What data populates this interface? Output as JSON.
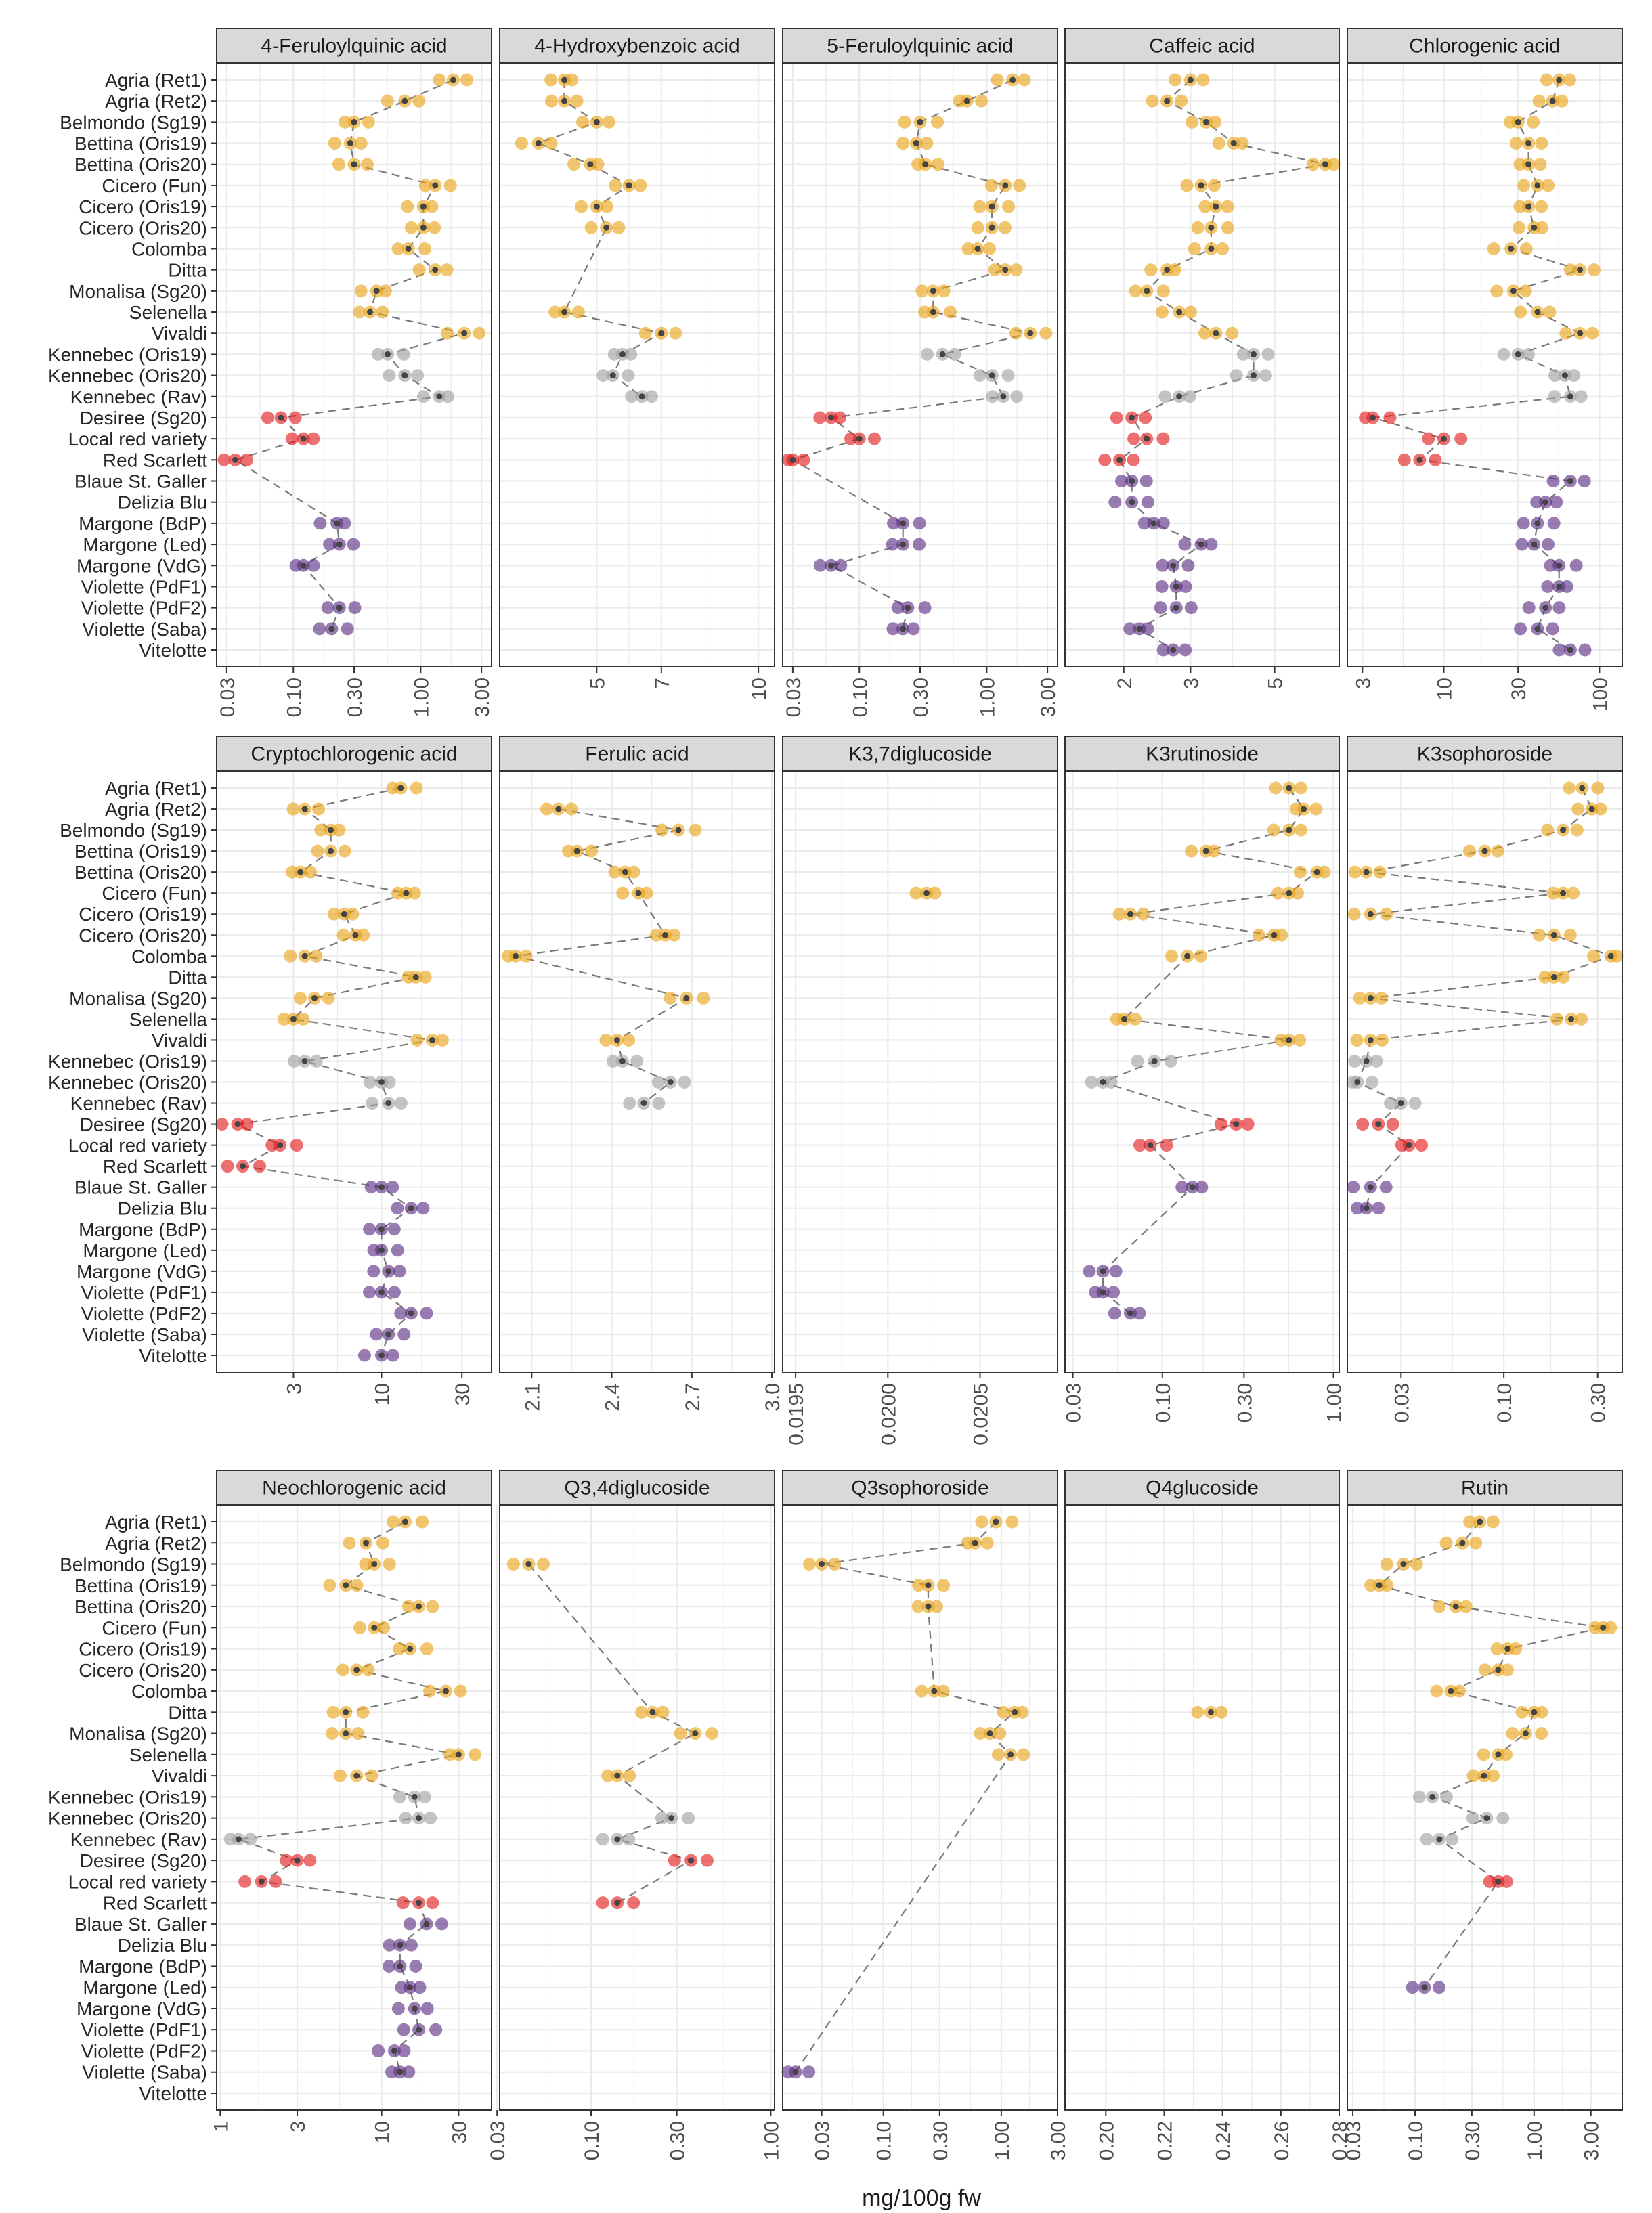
{
  "chart_data": {
    "type": "scatter",
    "xlabel": "mg/100g fw",
    "colors": {
      "yellow": "#E8A317",
      "grey": "#A0A0A0",
      "red": "#E41A1C",
      "purple": "#5B2C83",
      "mean": "#444444",
      "strip": "#D9D9D9",
      "grid": "#EBEBEB"
    },
    "varieties": [
      "Agria (Ret1)",
      "Agria (Ret2)",
      "Belmondo (Sg19)",
      "Bettina (Oris19)",
      "Bettina (Oris20)",
      "Cicero (Fun)",
      "Cicero (Oris19)",
      "Cicero (Oris20)",
      "Colomba",
      "Ditta",
      "Monalisa (Sg20)",
      "Selenella",
      "Vivaldi",
      "Kennebec (Oris19)",
      "Kennebec (Oris20)",
      "Kennebec (Rav)",
      "Desiree (Sg20)",
      "Local red variety",
      "Red Scarlett",
      "Blaue St. Galler",
      "Delizia Blu",
      "Margone (BdP)",
      "Margone (Led)",
      "Margone (VdG)",
      "Violette (PdF1)",
      "Violette (PdF2)",
      "Violette (Saba)",
      "Vitelotte"
    ],
    "groups": [
      "yellow",
      "yellow",
      "yellow",
      "yellow",
      "yellow",
      "yellow",
      "yellow",
      "yellow",
      "yellow",
      "yellow",
      "yellow",
      "yellow",
      "yellow",
      "grey",
      "grey",
      "grey",
      "red",
      "red",
      "red",
      "purple",
      "purple",
      "purple",
      "purple",
      "purple",
      "purple",
      "purple",
      "purple",
      "purple"
    ],
    "panels": [
      {
        "title": "4-Feruloylquinic acid",
        "log": true,
        "range": [
          0.025,
          3.6
        ],
        "ticks": [
          0.03,
          0.1,
          0.3,
          1,
          3
        ],
        "tick_labels": [
          "0.03",
          "0.10",
          "0.30",
          "1.00",
          "3.00"
        ],
        "means": [
          1.8,
          0.75,
          0.3,
          0.28,
          0.3,
          1.3,
          1.05,
          1.05,
          0.8,
          1.3,
          0.45,
          0.4,
          2.2,
          0.55,
          0.75,
          1.4,
          0.08,
          0.12,
          0.035,
          null,
          null,
          0.22,
          0.23,
          0.12,
          null,
          0.23,
          0.2,
          null
        ]
      },
      {
        "title": "4-Hydroxybenzoic acid",
        "log": false,
        "range": [
          2,
          10.5
        ],
        "ticks": [
          5,
          7,
          10
        ],
        "tick_labels": [
          "5",
          "7",
          "10"
        ],
        "means": [
          4,
          4,
          5,
          3.2,
          4.8,
          6,
          5,
          5.3,
          null,
          null,
          null,
          4,
          7,
          5.8,
          5.5,
          6.4,
          null,
          null,
          null,
          null,
          null,
          null,
          null,
          null,
          null,
          null,
          null,
          null
        ]
      },
      {
        "title": "5-Feruloylquinic acid",
        "log": true,
        "range": [
          0.025,
          3.6
        ],
        "ticks": [
          0.03,
          0.1,
          0.3,
          1,
          3
        ],
        "tick_labels": [
          "0.03",
          "0.10",
          "0.30",
          "1.00",
          "3.00"
        ],
        "means": [
          1.6,
          0.7,
          0.3,
          0.28,
          0.33,
          1.4,
          1.1,
          1.1,
          0.85,
          1.4,
          0.38,
          0.38,
          2.2,
          0.45,
          1.1,
          1.35,
          0.06,
          0.1,
          0.03,
          null,
          null,
          0.22,
          0.22,
          0.06,
          null,
          0.24,
          0.22,
          null
        ]
      },
      {
        "title": "Caffeic acid",
        "log": true,
        "range": [
          1.4,
          7.4
        ],
        "ticks": [
          2,
          3,
          5
        ],
        "tick_labels": [
          "2",
          "3",
          "5"
        ],
        "means": [
          3,
          2.6,
          3.3,
          3.9,
          6.8,
          3.2,
          3.5,
          3.4,
          3.4,
          2.6,
          2.3,
          2.8,
          3.5,
          4.4,
          4.4,
          2.8,
          2.1,
          2.3,
          1.95,
          2.1,
          2.1,
          2.4,
          3.2,
          2.7,
          2.75,
          2.75,
          2.2,
          2.7
        ]
      },
      {
        "title": "Chlorogenic acid",
        "log": true,
        "range": [
          2.4,
          140
        ],
        "ticks": [
          3,
          10,
          30,
          100
        ],
        "tick_labels": [
          "3",
          "10",
          "30",
          "100"
        ],
        "means": [
          55,
          50,
          30,
          35,
          35,
          40,
          35,
          38,
          27,
          75,
          28,
          40,
          75,
          30,
          60,
          65,
          3.5,
          10,
          7,
          65,
          45,
          40,
          38,
          55,
          55,
          45,
          40,
          65
        ]
      },
      {
        "title": "Cryptochlorogenic acid",
        "log": true,
        "range": [
          1.05,
          45
        ],
        "ticks": [
          3,
          10,
          30
        ],
        "tick_labels": [
          "3",
          "10",
          "30"
        ],
        "means": [
          13,
          3.5,
          5,
          5,
          3.3,
          14,
          6,
          7,
          3.5,
          16,
          4,
          3,
          20,
          3.5,
          10,
          11,
          1.4,
          2.5,
          1.5,
          10,
          15,
          10,
          10,
          11,
          10,
          15,
          11,
          10
        ]
      },
      {
        "title": "Ferulic acid",
        "log": false,
        "range": [
          1.98,
          3.01
        ],
        "ticks": [
          2.1,
          2.4,
          2.7,
          3.0
        ],
        "tick_labels": [
          "2.1",
          "2.4",
          "2.7",
          "3.0"
        ],
        "means": [
          null,
          2.2,
          2.65,
          2.27,
          2.45,
          2.5,
          null,
          2.6,
          2.04,
          null,
          2.68,
          null,
          2.42,
          2.44,
          2.62,
          2.52,
          null,
          null,
          null,
          null,
          null,
          null,
          null,
          null,
          null,
          null,
          null,
          null
        ]
      },
      {
        "title": "K3,7diglucoside",
        "log": false,
        "range": [
          0.01943,
          0.02092
        ],
        "ticks": [
          0.0195,
          0.02,
          0.0205
        ],
        "tick_labels": [
          "0.0195",
          "0.0200",
          "0.0205"
        ],
        "means": [
          null,
          null,
          null,
          null,
          null,
          0.02021,
          null,
          null,
          null,
          null,
          null,
          null,
          null,
          null,
          null,
          null,
          null,
          null,
          null,
          null,
          null,
          null,
          null,
          null,
          null,
          null,
          null,
          null
        ]
      },
      {
        "title": "K3rutinoside",
        "log": true,
        "range": [
          0.027,
          1.08
        ],
        "ticks": [
          0.03,
          0.1,
          0.3,
          1
        ],
        "tick_labels": [
          "0.03",
          "0.10",
          "0.30",
          "1.00"
        ],
        "means": [
          0.55,
          0.67,
          0.55,
          0.18,
          0.8,
          0.55,
          0.065,
          0.45,
          0.14,
          null,
          null,
          0.06,
          0.55,
          0.09,
          0.045,
          null,
          0.27,
          0.085,
          null,
          0.15,
          null,
          null,
          null,
          0.045,
          0.045,
          0.065,
          null,
          null
        ]
      },
      {
        "title": "K3sophoroside",
        "log": true,
        "range": [
          0.016,
          0.4
        ],
        "ticks": [
          0.03,
          0.1,
          0.3
        ],
        "tick_labels": [
          "0.03",
          "0.10",
          "0.30"
        ],
        "means": [
          0.25,
          0.28,
          0.2,
          0.08,
          0.02,
          0.2,
          0.021,
          0.18,
          0.35,
          0.18,
          0.021,
          0.22,
          0.021,
          0.02,
          0.018,
          0.03,
          0.023,
          0.033,
          null,
          0.021,
          0.02,
          null,
          null,
          null,
          null,
          null,
          null,
          null
        ]
      },
      {
        "title": "Neochlorogenic acid",
        "log": true,
        "range": [
          0.95,
          48
        ],
        "ticks": [
          1,
          3,
          10,
          30
        ],
        "tick_labels": [
          "1",
          "3",
          "10",
          "30"
        ],
        "means": [
          14,
          8,
          9,
          6,
          17,
          9,
          15,
          7,
          25,
          6,
          6,
          30,
          7,
          16,
          17,
          1.3,
          3,
          1.8,
          17,
          19,
          13,
          13,
          15,
          16,
          17,
          12,
          13,
          null
        ]
      },
      {
        "title": "Q3,4diglucoside",
        "log": true,
        "range": [
          0.031,
          1.05
        ],
        "ticks": [
          0.03,
          0.1,
          0.3,
          1
        ],
        "tick_labels": [
          "0.03",
          "0.10",
          "0.30",
          "1.00"
        ],
        "means": [
          null,
          null,
          0.045,
          null,
          null,
          null,
          null,
          null,
          null,
          0.22,
          0.38,
          null,
          0.14,
          null,
          0.28,
          0.14,
          0.36,
          null,
          0.14,
          null,
          null,
          null,
          null,
          null,
          null,
          null,
          null,
          null
        ]
      },
      {
        "title": "Q3sophoroside",
        "log": true,
        "range": [
          0.014,
          3.0
        ],
        "ticks": [
          0.03,
          0.1,
          0.3,
          1,
          3
        ],
        "tick_labels": [
          "0.03",
          "0.10",
          "0.30",
          "1.00",
          "3.00"
        ],
        "means": [
          0.9,
          0.6,
          0.03,
          0.24,
          0.24,
          null,
          null,
          null,
          0.27,
          1.3,
          0.8,
          1.2,
          null,
          null,
          null,
          null,
          null,
          null,
          null,
          null,
          null,
          null,
          null,
          null,
          null,
          null,
          0.018,
          null
        ]
      },
      {
        "title": "Q4glucoside",
        "log": false,
        "range": [
          0.186,
          0.28
        ],
        "ticks": [
          0.2,
          0.22,
          0.24,
          0.26,
          0.28
        ],
        "tick_labels": [
          "0.20",
          "0.22",
          "0.24",
          "0.26",
          "0.28"
        ],
        "means": [
          null,
          null,
          null,
          null,
          null,
          null,
          null,
          null,
          null,
          0.236,
          null,
          null,
          null,
          null,
          null,
          null,
          null,
          null,
          null,
          null,
          null,
          null,
          null,
          null,
          null,
          null,
          null,
          null
        ]
      },
      {
        "title": "Rutin",
        "log": true,
        "range": [
          0.027,
          5.5
        ],
        "ticks": [
          0.03,
          0.1,
          0.3,
          1,
          3
        ],
        "tick_labels": [
          "0.03",
          "0.10",
          "0.30",
          "1.00",
          "3.00"
        ],
        "means": [
          0.35,
          0.25,
          0.08,
          0.05,
          0.22,
          3.8,
          0.6,
          0.5,
          0.2,
          1.0,
          0.85,
          0.5,
          0.38,
          0.14,
          0.4,
          0.16,
          null,
          0.5,
          null,
          null,
          null,
          null,
          0.12,
          null,
          null,
          null,
          null,
          null
        ]
      }
    ]
  }
}
